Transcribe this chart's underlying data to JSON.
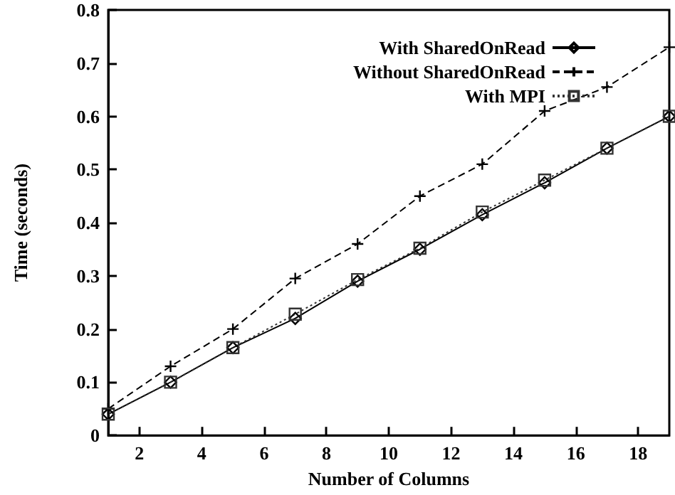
{
  "chart_data": {
    "type": "line",
    "xlabel": "Number of Columns",
    "ylabel": "Time (seconds)",
    "x": [
      1,
      3,
      5,
      7,
      9,
      11,
      13,
      15,
      17,
      19
    ],
    "series": [
      {
        "name": "With SharedOnRead",
        "color": "#000000",
        "marker": "diamond",
        "line_style": "solid",
        "values": [
          0.04,
          0.1,
          0.165,
          0.22,
          0.29,
          0.35,
          0.415,
          0.475,
          0.54,
          0.6
        ]
      },
      {
        "name": "Without SharedOnRead",
        "color": "#000000",
        "marker": "cross",
        "line_style": "dashed",
        "values": [
          0.05,
          0.13,
          0.2,
          0.295,
          0.36,
          0.45,
          0.51,
          0.61,
          0.655,
          0.73
        ]
      },
      {
        "name": "With MPI",
        "color": "#333333",
        "marker": "square",
        "line_style": "dotted",
        "values": [
          0.04,
          0.1,
          0.165,
          0.228,
          0.293,
          0.352,
          0.42,
          0.48,
          0.54,
          0.6
        ]
      }
    ],
    "xlim": [
      1,
      19
    ],
    "xticks": [
      2,
      4,
      6,
      8,
      10,
      12,
      14,
      16,
      18
    ],
    "ylim": [
      0,
      0.8
    ],
    "yticks": [
      0,
      0.1,
      0.2,
      0.3,
      0.4,
      0.5,
      0.6,
      0.7,
      0.8
    ],
    "grid": false,
    "legend": "top right"
  }
}
